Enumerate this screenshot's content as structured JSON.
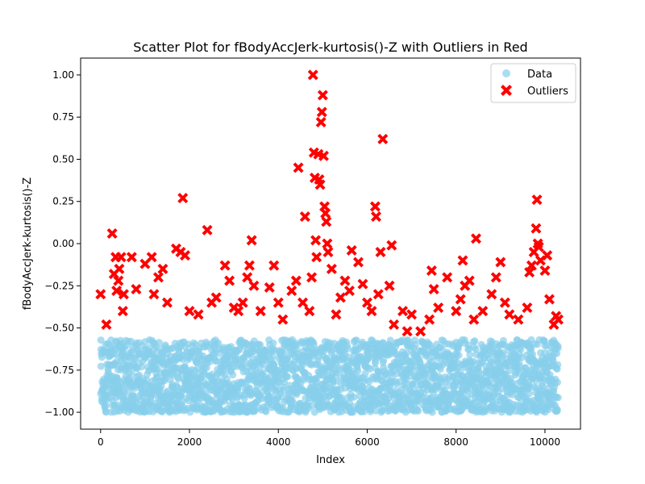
{
  "chart_data": {
    "type": "scatter",
    "title": "Scatter Plot for fBodyAccJerk-kurtosis()-Z with Outliers in Red",
    "xlabel": "Index",
    "ylabel": "fBodyAccJerk-kurtosis()-Z",
    "xlim": [
      -450,
      10800
    ],
    "ylim": [
      -1.1,
      1.1
    ],
    "xticks": [
      0,
      2000,
      4000,
      6000,
      8000,
      10000
    ],
    "xtick_labels": [
      "0",
      "2000",
      "4000",
      "6000",
      "8000",
      "10000"
    ],
    "yticks": [
      -1.0,
      -0.75,
      -0.5,
      -0.25,
      0.0,
      0.25,
      0.5,
      0.75,
      1.0
    ],
    "ytick_labels": [
      "−1.00",
      "−0.75",
      "−0.50",
      "−0.25",
      "0.00",
      "0.25",
      "0.50",
      "0.75",
      "1.00"
    ],
    "grid": false,
    "legend_position": "top-right",
    "series": [
      {
        "name": "Data",
        "marker": "circle",
        "color": "#87ceeb",
        "x_range": [
          0,
          10299
        ],
        "y_range": [
          -1.0,
          -0.57
        ],
        "description": "dense band of normal observations"
      },
      {
        "name": "Outliers",
        "marker": "x-filled",
        "color": "#ff0000",
        "points": [
          [
            0,
            -0.3
          ],
          [
            130,
            -0.48
          ],
          [
            260,
            0.06
          ],
          [
            300,
            -0.18
          ],
          [
            340,
            -0.08
          ],
          [
            360,
            -0.28
          ],
          [
            400,
            -0.22
          ],
          [
            420,
            -0.15
          ],
          [
            460,
            -0.08
          ],
          [
            500,
            -0.4
          ],
          [
            520,
            -0.3
          ],
          [
            700,
            -0.08
          ],
          [
            800,
            -0.27
          ],
          [
            1000,
            -0.12
          ],
          [
            1150,
            -0.08
          ],
          [
            1200,
            -0.3
          ],
          [
            1300,
            -0.2
          ],
          [
            1400,
            -0.15
          ],
          [
            1500,
            -0.35
          ],
          [
            1700,
            -0.03
          ],
          [
            1800,
            -0.05
          ],
          [
            1850,
            0.27
          ],
          [
            1900,
            -0.07
          ],
          [
            2000,
            -0.4
          ],
          [
            2200,
            -0.42
          ],
          [
            2400,
            0.08
          ],
          [
            2500,
            -0.35
          ],
          [
            2600,
            -0.32
          ],
          [
            2800,
            -0.13
          ],
          [
            2900,
            -0.22
          ],
          [
            3000,
            -0.38
          ],
          [
            3100,
            -0.4
          ],
          [
            3200,
            -0.35
          ],
          [
            3300,
            -0.2
          ],
          [
            3350,
            -0.13
          ],
          [
            3400,
            0.02
          ],
          [
            3450,
            -0.25
          ],
          [
            3600,
            -0.4
          ],
          [
            3800,
            -0.26
          ],
          [
            3900,
            -0.13
          ],
          [
            4000,
            -0.35
          ],
          [
            4100,
            -0.45
          ],
          [
            4300,
            -0.28
          ],
          [
            4400,
            -0.22
          ],
          [
            4450,
            0.45
          ],
          [
            4550,
            -0.35
          ],
          [
            4600,
            0.16
          ],
          [
            4700,
            -0.4
          ],
          [
            4750,
            -0.2
          ],
          [
            4780,
            1.0
          ],
          [
            4800,
            0.54
          ],
          [
            4820,
            0.39
          ],
          [
            4840,
            0.02
          ],
          [
            4860,
            -0.08
          ],
          [
            4900,
            0.53
          ],
          [
            4920,
            0.38
          ],
          [
            4940,
            0.35
          ],
          [
            4960,
            0.72
          ],
          [
            4980,
            0.78
          ],
          [
            5000,
            0.88
          ],
          [
            5020,
            0.52
          ],
          [
            5040,
            0.22
          ],
          [
            5060,
            0.18
          ],
          [
            5080,
            0.13
          ],
          [
            5100,
            0.0
          ],
          [
            5120,
            -0.05
          ],
          [
            5200,
            -0.15
          ],
          [
            5300,
            -0.42
          ],
          [
            5400,
            -0.32
          ],
          [
            5500,
            -0.22
          ],
          [
            5600,
            -0.28
          ],
          [
            5650,
            -0.04
          ],
          [
            5800,
            -0.11
          ],
          [
            5900,
            -0.24
          ],
          [
            6000,
            -0.35
          ],
          [
            6100,
            -0.4
          ],
          [
            6180,
            0.22
          ],
          [
            6200,
            0.16
          ],
          [
            6250,
            -0.3
          ],
          [
            6300,
            -0.05
          ],
          [
            6350,
            0.62
          ],
          [
            6500,
            -0.25
          ],
          [
            6550,
            -0.01
          ],
          [
            6600,
            -0.48
          ],
          [
            6800,
            -0.4
          ],
          [
            6900,
            -0.52
          ],
          [
            7000,
            -0.42
          ],
          [
            7200,
            -0.52
          ],
          [
            7400,
            -0.45
          ],
          [
            7450,
            -0.16
          ],
          [
            7500,
            -0.27
          ],
          [
            7600,
            -0.38
          ],
          [
            7800,
            -0.2
          ],
          [
            8000,
            -0.4
          ],
          [
            8100,
            -0.33
          ],
          [
            8150,
            -0.1
          ],
          [
            8200,
            -0.25
          ],
          [
            8300,
            -0.22
          ],
          [
            8400,
            -0.45
          ],
          [
            8450,
            0.03
          ],
          [
            8600,
            -0.4
          ],
          [
            8800,
            -0.3
          ],
          [
            8900,
            -0.2
          ],
          [
            9000,
            -0.11
          ],
          [
            9100,
            -0.35
          ],
          [
            9200,
            -0.42
          ],
          [
            9400,
            -0.45
          ],
          [
            9600,
            -0.38
          ],
          [
            9650,
            -0.17
          ],
          [
            9700,
            -0.13
          ],
          [
            9750,
            -0.05
          ],
          [
            9800,
            0.09
          ],
          [
            9820,
            0.26
          ],
          [
            9840,
            0.0
          ],
          [
            9860,
            -0.02
          ],
          [
            9900,
            -0.1
          ],
          [
            10000,
            -0.16
          ],
          [
            10050,
            -0.07
          ],
          [
            10100,
            -0.33
          ],
          [
            10200,
            -0.48
          ],
          [
            10250,
            -0.43
          ],
          [
            10300,
            -0.45
          ]
        ]
      }
    ]
  }
}
